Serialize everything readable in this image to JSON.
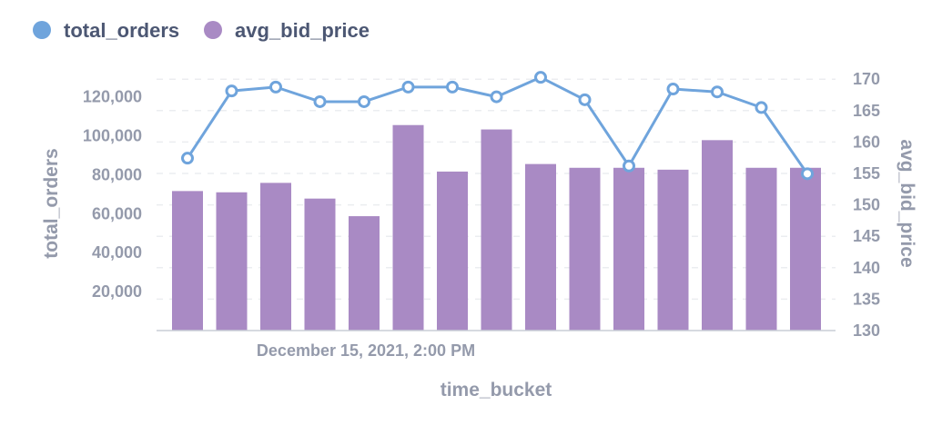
{
  "chart_data": {
    "type": "bar",
    "legend": [
      {
        "name": "total_orders",
        "color": "#6fa4dc"
      },
      {
        "name": "avg_bid_price",
        "color": "#a98ac4"
      }
    ],
    "xlabel": "time_bucket",
    "x_tick_labels": [
      "December 15, 2021, 2:00 PM"
    ],
    "y_left": {
      "label": "total_orders",
      "ticks": [
        "20,000",
        "40,000",
        "60,000",
        "80,000",
        "100,000",
        "120,000"
      ],
      "tick_values": [
        20000,
        40000,
        60000,
        80000,
        100000,
        120000
      ],
      "range": [
        0,
        125000
      ]
    },
    "y_right": {
      "label": "avg_bid_price",
      "ticks": [
        "130",
        "135",
        "140",
        "145",
        "150",
        "155",
        "160",
        "165",
        "170"
      ],
      "tick_values": [
        130,
        135,
        140,
        145,
        150,
        155,
        160,
        165,
        170
      ],
      "range": [
        130,
        171
      ]
    },
    "grid": true,
    "legend_position": "top-left",
    "series": [
      {
        "name": "avg_bid_price",
        "kind": "bar",
        "axis": "right",
        "color": "#a98ac4",
        "values": [
          152.2,
          152.0,
          153.5,
          151.0,
          148.2,
          162.7,
          155.3,
          162.0,
          156.5,
          155.9,
          155.9,
          155.6,
          160.3,
          155.9,
          155.9
        ]
      },
      {
        "name": "total_orders",
        "kind": "line",
        "axis": "left",
        "color": "#6fa4dc",
        "values": [
          88500,
          123000,
          125000,
          117500,
          117500,
          125000,
          125000,
          120000,
          130000,
          118500,
          84500,
          124000,
          122500,
          114500,
          80500
        ]
      }
    ]
  }
}
